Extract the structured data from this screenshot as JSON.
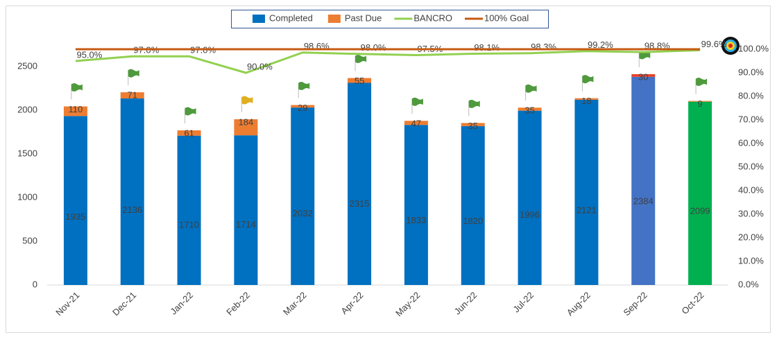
{
  "chart_data": {
    "type": "bar",
    "categories": [
      "Nov-21",
      "Dec-21",
      "Jan-22",
      "Feb-22",
      "Mar-22",
      "Apr-22",
      "May-22",
      "Jun-22",
      "Jul-22",
      "Aug-22",
      "Sep-22",
      "Oct-22"
    ],
    "series": [
      {
        "name": "Completed",
        "color": "#0070c0",
        "colors": [
          "#0070c0",
          "#0070c0",
          "#0070c0",
          "#0070c0",
          "#0070c0",
          "#0070c0",
          "#0070c0",
          "#0070c0",
          "#0070c0",
          "#0070c0",
          "#4472c4",
          "#00b050"
        ],
        "values": [
          1935,
          2136,
          1710,
          1714,
          2032,
          2315,
          1833,
          1820,
          1996,
          2121,
          2384,
          2099
        ]
      },
      {
        "name": "Past Due",
        "color": "#ed7d31",
        "colors": [
          "#ed7d31",
          "#ed7d31",
          "#ed7d31",
          "#ed7d31",
          "#ed7d31",
          "#ed7d31",
          "#ed7d31",
          "#ed7d31",
          "#ed7d31",
          "#ed7d31",
          "#e8402a",
          "#ed7d31"
        ],
        "values": [
          110,
          71,
          61,
          184,
          29,
          55,
          47,
          35,
          35,
          18,
          30,
          9
        ]
      },
      {
        "name": "BANCRO",
        "type": "line",
        "axis": "y2",
        "color": "#92d050",
        "values": [
          95.0,
          97.0,
          97.0,
          90.0,
          98.6,
          98.0,
          97.5,
          98.1,
          98.3,
          99.2,
          98.8,
          99.6
        ],
        "value_labels": [
          "95.0%",
          "97.0%",
          "97.0%",
          "90.0%",
          "98.6%",
          "98.0%",
          "97.5%",
          "98.1%",
          "98.3%",
          "99.2%",
          "98.8%",
          "99.6%"
        ]
      },
      {
        "name": "100% Goal",
        "type": "line",
        "axis": "y2",
        "color": "#c55a11",
        "values": [
          100,
          100,
          100,
          100,
          100,
          100,
          100,
          100,
          100,
          100,
          100,
          100
        ]
      }
    ],
    "flag_colors": [
      "#4e9a3c",
      "#4e9a3c",
      "#4e9a3c",
      "#e0b020",
      "#4e9a3c",
      "#4e9a3c",
      "#4e9a3c",
      "#4e9a3c",
      "#4e9a3c",
      "#4e9a3c",
      "#4e9a3c",
      "#4e9a3c"
    ],
    "ylim": [
      0,
      2700
    ],
    "yticks": [
      0,
      500,
      1000,
      1500,
      2000,
      2500
    ],
    "y2lim": [
      0,
      100
    ],
    "y2ticks": [
      {
        "value": 0,
        "label": "0.0%"
      },
      {
        "value": 10,
        "label": "10.0%"
      },
      {
        "value": 20,
        "label": "20.0%"
      },
      {
        "value": 30,
        "label": "30.0%"
      },
      {
        "value": 40,
        "label": "40.0%"
      },
      {
        "value": 50,
        "label": "50.0%"
      },
      {
        "value": 60,
        "label": "60.0%"
      },
      {
        "value": 70,
        "label": "70.0%"
      },
      {
        "value": 80,
        "label": "80.0%"
      },
      {
        "value": 90,
        "label": "90.0%"
      },
      {
        "value": 100,
        "label": "100.0%"
      }
    ],
    "legend": "top"
  }
}
